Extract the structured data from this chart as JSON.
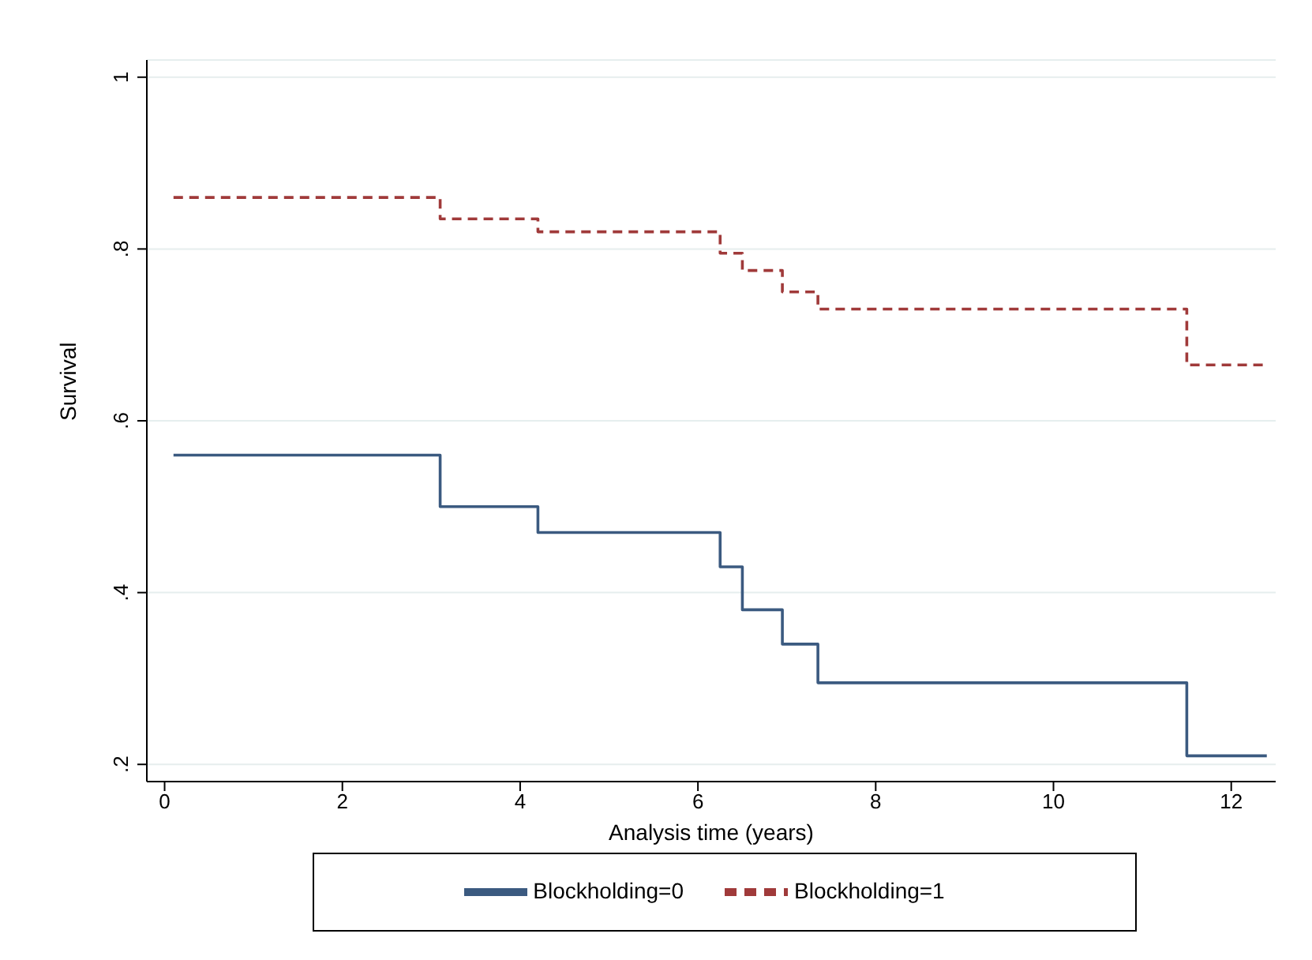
{
  "chart_data": {
    "type": "step",
    "xlabel": "Analysis time (years)",
    "ylabel": "Survival",
    "x": [
      0.1,
      3.1,
      4.2,
      6.25,
      6.5,
      6.95,
      7.35,
      11.5,
      12.4
    ],
    "series": [
      {
        "name": "Blockholding=0",
        "color": "#3b5a80",
        "line_style": "solid",
        "values": [
          0.56,
          0.5,
          0.47,
          0.43,
          0.38,
          0.34,
          0.295,
          0.21,
          0.21
        ]
      },
      {
        "name": "Blockholding=1",
        "color": "#a03a3a",
        "line_style": "dashed",
        "values": [
          0.86,
          0.835,
          0.82,
          0.795,
          0.775,
          0.75,
          0.73,
          0.665,
          0.665
        ]
      }
    ],
    "xlim": [
      -0.2,
      12.5
    ],
    "xticks": [
      0,
      2,
      4,
      6,
      8,
      10,
      12
    ],
    "ylim": [
      0.18,
      1.02
    ],
    "yticks": [
      {
        "value": 0.2,
        "label": ".2"
      },
      {
        "value": 0.4,
        "label": ".4"
      },
      {
        "value": 0.6,
        "label": ".6"
      },
      {
        "value": 0.8,
        "label": ".8"
      },
      {
        "value": 1,
        "label": "1"
      }
    ],
    "grid": "y",
    "legend": "bottom",
    "marker": "none"
  }
}
